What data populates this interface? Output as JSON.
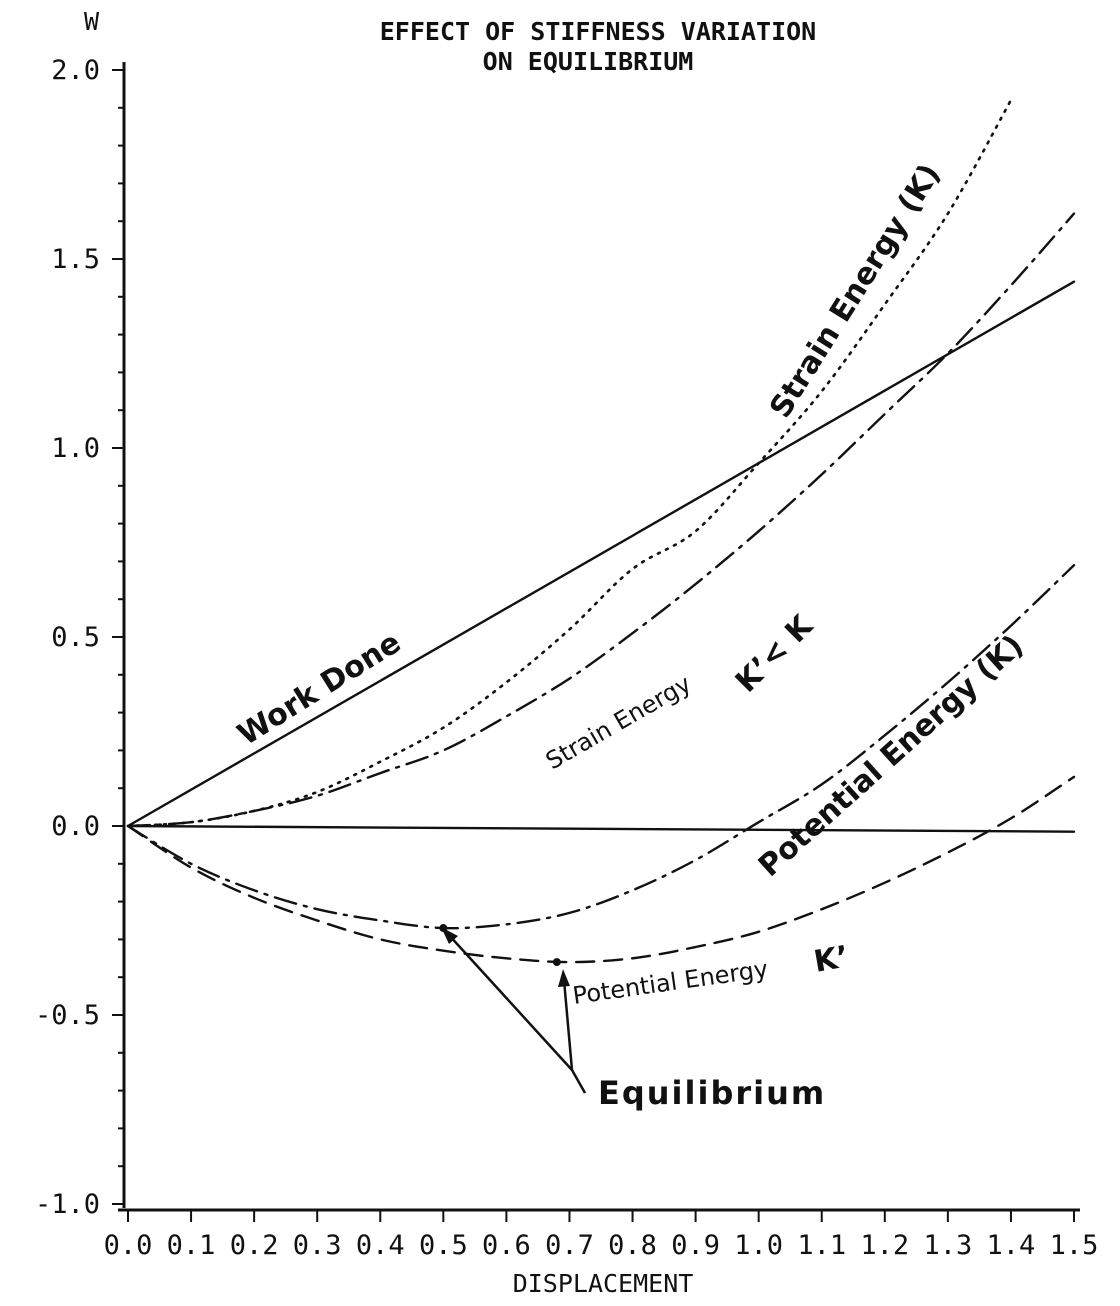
{
  "chart_data": {
    "type": "line",
    "title_line1": "EFFECT OF STIFFNESS VARIATION",
    "title_line2": "ON EQUILIBRIUM",
    "ylabel": "W",
    "xlabel": "DISPLACEMENT",
    "xlim": [
      0,
      1.5
    ],
    "ylim": [
      -1.0,
      2.0
    ],
    "x_ticks": [
      "0.0",
      "0.1",
      "0.2",
      "0.3",
      "0.4",
      "0.5",
      "0.6",
      "0.7",
      "0.8",
      "0.9",
      "1.0",
      "1.1",
      "1.2",
      "1.3",
      "1.4",
      "1.5"
    ],
    "y_ticks": [
      "2.0",
      "1.5",
      "1.0",
      "0.5",
      "0.0",
      "-0.5",
      "-1.0"
    ],
    "grid": false,
    "series": [
      {
        "key": "work",
        "style": "solid",
        "x": [
          0,
          1.5
        ],
        "y": [
          0,
          1.44
        ]
      },
      {
        "key": "zero",
        "style": "solid",
        "x": [
          0,
          1.5
        ],
        "y": [
          0,
          -0.015
        ]
      },
      {
        "key": "strain_k",
        "style": "dotted",
        "x": [
          0,
          0.1,
          0.2,
          0.3,
          0.4,
          0.5,
          0.6,
          0.7,
          0.8,
          0.9,
          1.0,
          1.1,
          1.2,
          1.3,
          1.4
        ],
        "y": [
          0,
          0.01,
          0.04,
          0.09,
          0.17,
          0.26,
          0.38,
          0.52,
          0.68,
          0.78,
          0.96,
          1.15,
          1.38,
          1.62,
          1.92
        ]
      },
      {
        "key": "strain_kp",
        "style": "dashdot",
        "x": [
          0,
          0.1,
          0.2,
          0.3,
          0.4,
          0.5,
          0.6,
          0.7,
          0.8,
          0.9,
          1.0,
          1.1,
          1.2,
          1.3,
          1.4,
          1.5
        ],
        "y": [
          0,
          0.01,
          0.04,
          0.08,
          0.14,
          0.2,
          0.29,
          0.39,
          0.51,
          0.64,
          0.78,
          0.93,
          1.09,
          1.25,
          1.43,
          1.62
        ]
      },
      {
        "key": "pot_k",
        "style": "dashdot",
        "x": [
          0,
          0.1,
          0.2,
          0.3,
          0.4,
          0.5,
          0.6,
          0.7,
          0.8,
          0.9,
          1.0,
          1.1,
          1.2,
          1.3,
          1.4,
          1.5
        ],
        "y": [
          0,
          -0.1,
          -0.17,
          -0.22,
          -0.25,
          -0.27,
          -0.26,
          -0.23,
          -0.17,
          -0.09,
          0.01,
          0.11,
          0.24,
          0.38,
          0.53,
          0.69
        ]
      },
      {
        "key": "pot_kp",
        "style": "dashed",
        "x": [
          0,
          0.1,
          0.2,
          0.3,
          0.4,
          0.5,
          0.6,
          0.7,
          0.8,
          0.9,
          1.0,
          1.1,
          1.2,
          1.3,
          1.4,
          1.5
        ],
        "y": [
          0,
          -0.11,
          -0.19,
          -0.25,
          -0.3,
          -0.33,
          -0.35,
          -0.36,
          -0.35,
          -0.32,
          -0.28,
          -0.22,
          -0.15,
          -0.07,
          0.02,
          0.13
        ]
      }
    ],
    "equilibrium_points": [
      {
        "x": 0.5,
        "y": -0.27
      },
      {
        "x": 0.68,
        "y": -0.36
      }
    ],
    "annotations": {
      "work_done": "Work Done",
      "strain_k": "Strain Energy (K)",
      "strain_kp": "Strain Energy",
      "k_compare": "K’< K",
      "potential_k": "Potential  Energy (K)",
      "potential_kp": "Potential Energy",
      "kprime": "K’",
      "equilibrium": "Equilibrium"
    }
  }
}
